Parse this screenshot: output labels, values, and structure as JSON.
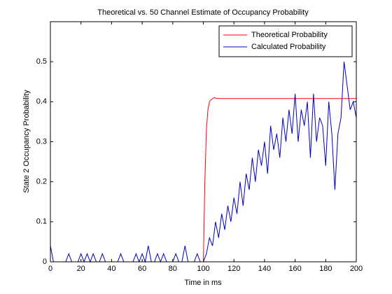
{
  "chart_data": {
    "type": "line",
    "title": "Theoretical vs. 50 Channel Estimate of Occupancy Probability",
    "xlabel": "Time in ms",
    "ylabel": "State 2 Occupancy Probability",
    "xlim": [
      0,
      200
    ],
    "xticks": [
      0,
      20,
      40,
      60,
      80,
      100,
      120,
      140,
      160,
      180,
      200
    ],
    "ylim": [
      0,
      0.6
    ],
    "yticks": [
      0,
      0.1,
      0.2,
      0.3,
      0.4,
      0.5
    ],
    "legend": "upper right",
    "series": [
      {
        "name": "Theoretical Probability",
        "color": "#ff0000",
        "x": [
          0,
          100,
          101,
          102,
          103,
          104,
          105,
          107,
          110,
          200
        ],
        "values": [
          0,
          0,
          0.2,
          0.33,
          0.38,
          0.4,
          0.405,
          0.41,
          0.408,
          0.408
        ]
      },
      {
        "name": "Calculated Probability",
        "color": "#0000c0",
        "x": [
          0,
          2,
          4,
          6,
          8,
          10,
          12,
          14,
          16,
          18,
          20,
          22,
          24,
          26,
          28,
          30,
          32,
          34,
          36,
          38,
          40,
          42,
          44,
          46,
          48,
          50,
          52,
          54,
          56,
          58,
          60,
          62,
          64,
          66,
          68,
          70,
          72,
          74,
          76,
          78,
          80,
          82,
          84,
          86,
          88,
          90,
          92,
          94,
          96,
          98,
          100,
          102,
          104,
          106,
          108,
          110,
          112,
          114,
          116,
          118,
          120,
          122,
          124,
          126,
          128,
          130,
          132,
          134,
          136,
          138,
          140,
          142,
          144,
          146,
          148,
          150,
          152,
          154,
          156,
          158,
          160,
          162,
          164,
          166,
          168,
          170,
          172,
          174,
          176,
          178,
          180,
          182,
          184,
          186,
          188,
          190,
          192,
          194,
          196,
          198,
          200
        ],
        "values": [
          0.04,
          0,
          0,
          0,
          0,
          0,
          0.02,
          0,
          0,
          0,
          0.02,
          0,
          0.02,
          0,
          0.02,
          0,
          0,
          0.02,
          0,
          0,
          0,
          0,
          0,
          0.02,
          0,
          0,
          0,
          0,
          0.02,
          0,
          0.02,
          0,
          0.04,
          0,
          0,
          0.02,
          0,
          0.02,
          0,
          0,
          0,
          0.02,
          0,
          0,
          0.04,
          0,
          0,
          0,
          0.02,
          0,
          0,
          0.02,
          0.06,
          0.04,
          0.1,
          0.06,
          0.12,
          0.08,
          0.14,
          0.1,
          0.16,
          0.12,
          0.2,
          0.14,
          0.22,
          0.18,
          0.26,
          0.2,
          0.28,
          0.24,
          0.3,
          0.22,
          0.34,
          0.28,
          0.32,
          0.26,
          0.36,
          0.3,
          0.38,
          0.32,
          0.42,
          0.3,
          0.38,
          0.34,
          0.4,
          0.26,
          0.42,
          0.3,
          0.36,
          0.34,
          0.24,
          0.4,
          0.32,
          0.18,
          0.32,
          0.36,
          0.5,
          0.44,
          0.38,
          0.4,
          0.36
        ]
      }
    ]
  }
}
